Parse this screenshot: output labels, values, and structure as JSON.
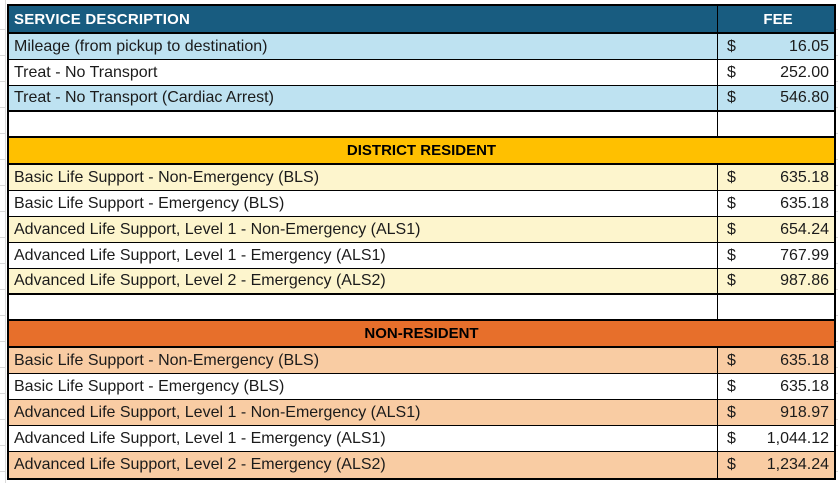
{
  "table": {
    "columns": {
      "service": "SERVICE DESCRIPTION",
      "fee": "FEE"
    },
    "currency": "$",
    "base_rows": [
      {
        "desc": "Mileage (from pickup to destination)",
        "amount": "16.05"
      },
      {
        "desc": "Treat - No Transport",
        "amount": "252.00"
      },
      {
        "desc": "Treat - No Transport (Cardiac Arrest)",
        "amount": "546.80"
      }
    ],
    "sections": [
      {
        "title": "DISTRICT RESIDENT",
        "rows": [
          {
            "desc": "Basic Life Support - Non-Emergency (BLS)",
            "amount": "635.18"
          },
          {
            "desc": "Basic Life Support - Emergency (BLS)",
            "amount": "635.18"
          },
          {
            "desc": "Advanced Life Support, Level 1 - Non-Emergency (ALS1)",
            "amount": "654.24"
          },
          {
            "desc": "Advanced Life Support, Level 1 - Emergency (ALS1)",
            "amount": "767.99"
          },
          {
            "desc": "Advanced Life Support, Level 2 - Emergency (ALS2)",
            "amount": "987.86"
          }
        ]
      },
      {
        "title": "NON-RESIDENT",
        "rows": [
          {
            "desc": "Basic Life Support - Non-Emergency (BLS)",
            "amount": "635.18"
          },
          {
            "desc": "Basic Life Support - Emergency (BLS)",
            "amount": "635.18"
          },
          {
            "desc": "Advanced Life Support, Level 1 - Non-Emergency (ALS1)",
            "amount": "918.97"
          },
          {
            "desc": "Advanced Life Support, Level 1 - Emergency (ALS1)",
            "amount": "1,044.12"
          },
          {
            "desc": "Advanced Life Support, Level 2 - Emergency (ALS2)",
            "amount": "1,234.24"
          }
        ]
      }
    ]
  },
  "colors": {
    "header_bg": "#185C80",
    "header_text": "#FFFFFF",
    "row_blue": "#BEE2F1",
    "section1_bg": "#FFC000",
    "section1_row": "#FDF5CD",
    "section2_bg": "#E76F2B",
    "section2_row": "#F9CCA3",
    "border": "#000000",
    "text": "#1B1B1B",
    "gridline": "#D9D9D9"
  }
}
